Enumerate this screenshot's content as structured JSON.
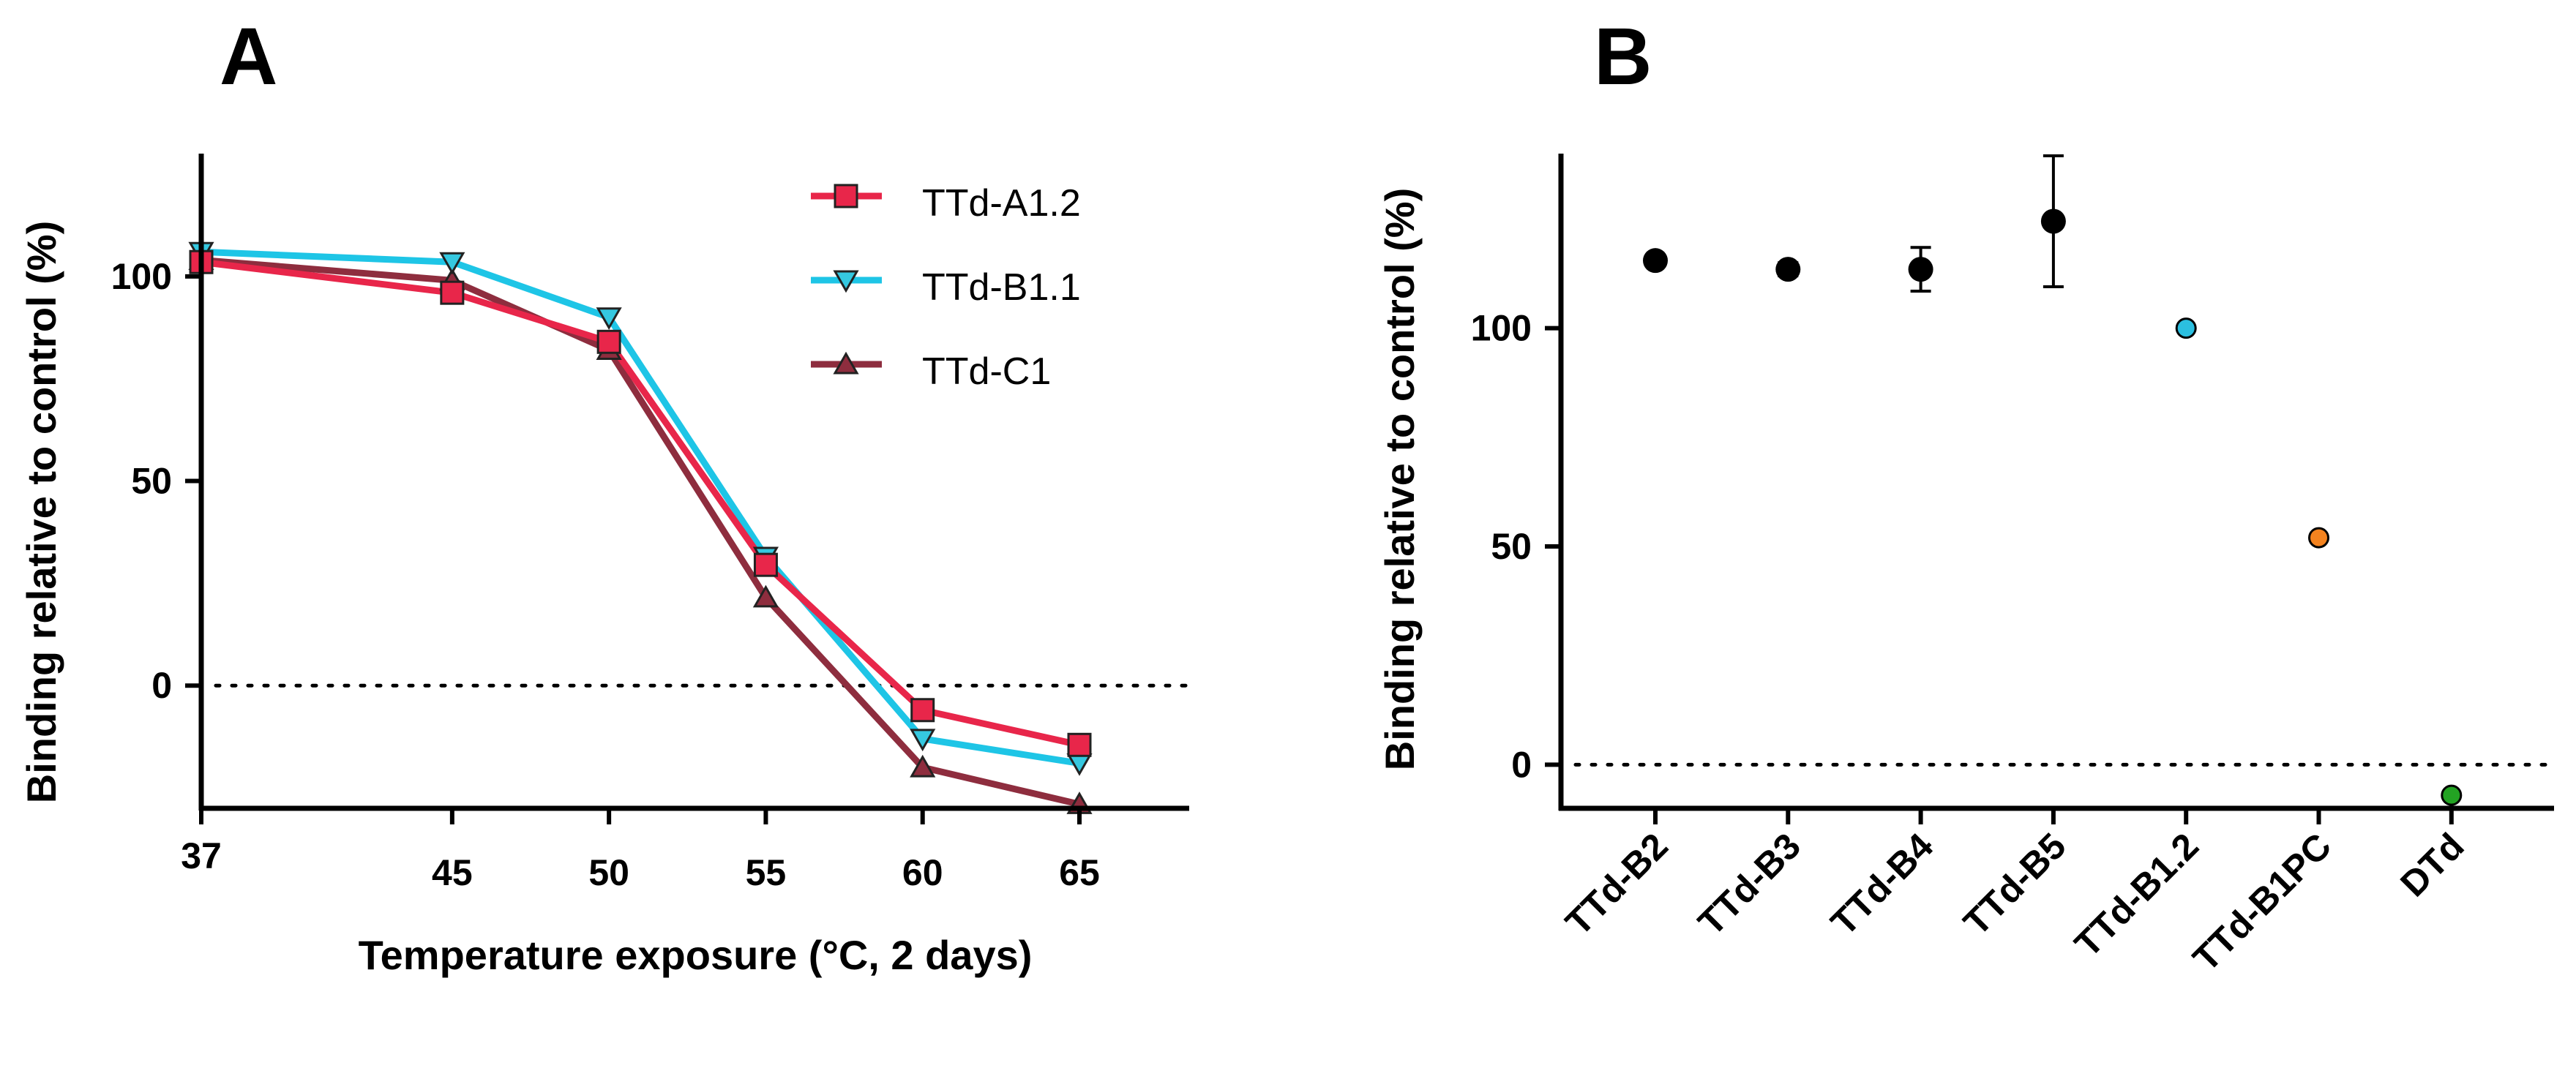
{
  "chart_data": [
    {
      "panel": "A",
      "type": "line",
      "title": "",
      "xlabel": "Temperature exposure (°C, 2 days)",
      "ylabel": "Binding relative to control (%)",
      "x": [
        37,
        45,
        50,
        55,
        60,
        65
      ],
      "xlim": [
        37,
        68.5
      ],
      "ylim": [
        -30,
        130
      ],
      "xticks": [
        37,
        45,
        50,
        55,
        60,
        65
      ],
      "yticks": [
        0,
        50,
        100
      ],
      "reference_line_y": 0,
      "grid": false,
      "legend_position": "top-right",
      "series": [
        {
          "name": "TTd-A1.2",
          "marker": "square",
          "color": "#e8264a",
          "marker_color": "#e8264a",
          "values": [
            103.5,
            96,
            84,
            29.5,
            -6,
            -14.5
          ]
        },
        {
          "name": "TTd-B1.1",
          "marker": "triangle-down",
          "color": "#1ec5e6",
          "marker_color": "#35c8e0",
          "values": [
            106,
            103.5,
            90,
            31.5,
            -13,
            -19
          ]
        },
        {
          "name": "TTd-C1",
          "marker": "triangle-up",
          "color": "#8e2d3e",
          "marker_color": "#8e2d3e",
          "values": [
            104,
            99,
            82,
            21.5,
            -20,
            -29
          ]
        }
      ]
    },
    {
      "panel": "B",
      "type": "scatter",
      "title": "",
      "xlabel": "",
      "ylabel": "Binding relative to control (%)",
      "categories": [
        "TTd-B2",
        "TTd-B3",
        "TTd-B4",
        "TTd-B5",
        "TTd-B1.2",
        "TTd-B1PC",
        "DTd"
      ],
      "values": [
        115.5,
        113.5,
        113.5,
        124.5,
        100,
        52,
        -7
      ],
      "errors": [
        1,
        1.5,
        5,
        15,
        0,
        0,
        0
      ],
      "colors": [
        "#000000",
        "#000000",
        "#000000",
        "#000000",
        "#2bbfe0",
        "#f4831f",
        "#23a323"
      ],
      "ylim": [
        -10,
        140
      ],
      "yticks": [
        0,
        50,
        100
      ],
      "reference_line_y": 0,
      "grid": false
    }
  ]
}
